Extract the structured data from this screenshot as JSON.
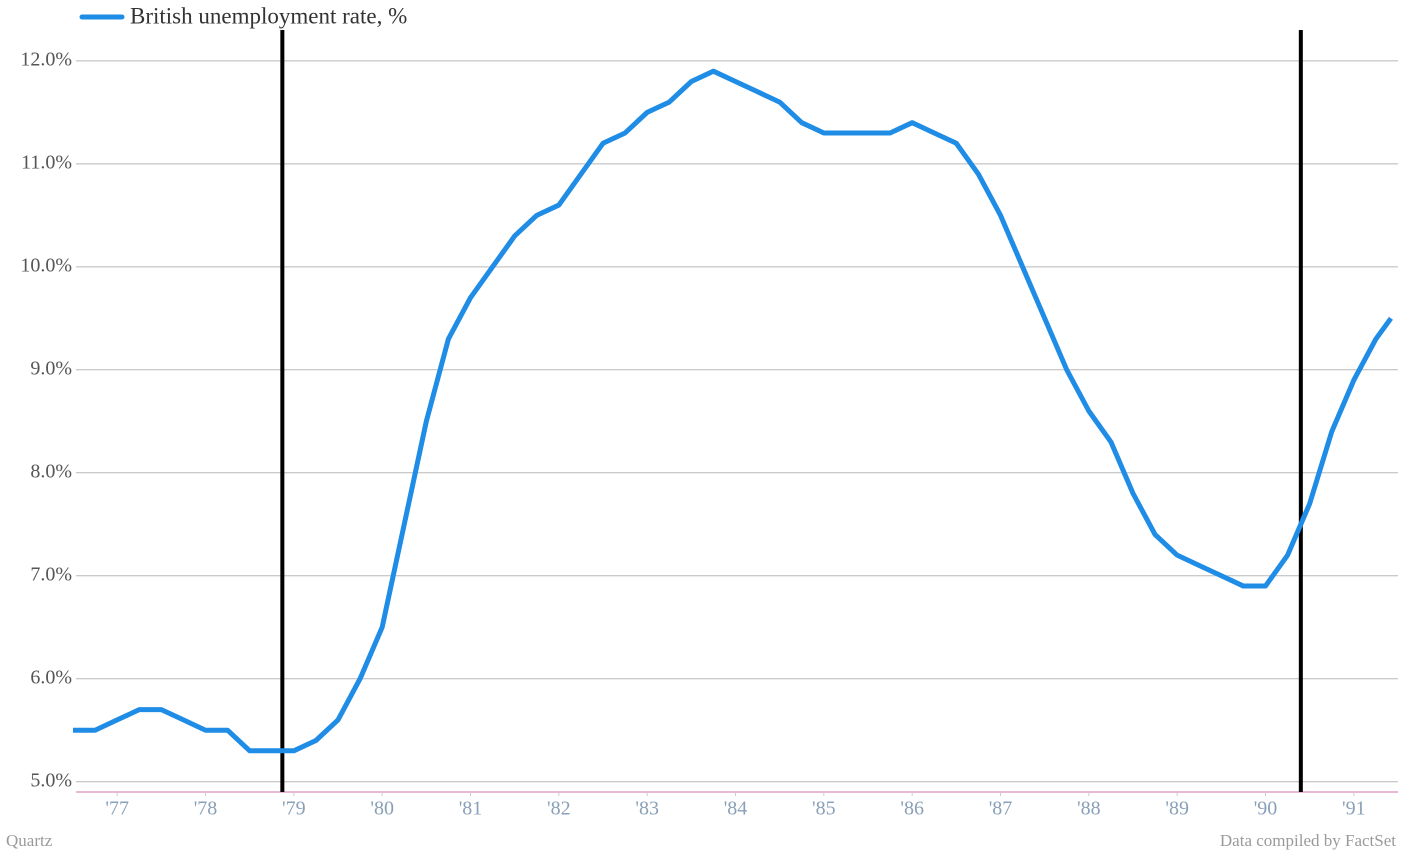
{
  "chart_data": {
    "type": "line",
    "x": [
      1977.0,
      1977.25,
      1977.5,
      1977.75,
      1978.0,
      1978.25,
      1978.5,
      1978.75,
      1979.0,
      1979.25,
      1979.5,
      1979.75,
      1980.0,
      1980.25,
      1980.5,
      1980.75,
      1981.0,
      1981.25,
      1981.5,
      1981.75,
      1982.0,
      1982.25,
      1982.5,
      1982.75,
      1983.0,
      1983.25,
      1983.5,
      1983.75,
      1984.0,
      1984.25,
      1984.5,
      1984.75,
      1985.0,
      1985.25,
      1985.5,
      1985.75,
      1986.0,
      1986.25,
      1986.5,
      1986.75,
      1987.0,
      1987.25,
      1987.5,
      1987.75,
      1988.0,
      1988.25,
      1988.5,
      1988.75,
      1989.0,
      1989.25,
      1989.5,
      1989.75,
      1990.0,
      1990.25,
      1990.5,
      1990.75,
      1991.0,
      1991.25,
      1991.5,
      1991.75,
      1991.92
    ],
    "series": [
      {
        "name": "British unemployment rate, %",
        "color": "#1f8ce6",
        "values": [
          5.5,
          5.5,
          5.6,
          5.7,
          5.7,
          5.6,
          5.5,
          5.5,
          5.3,
          5.3,
          5.3,
          5.4,
          5.6,
          6.0,
          6.5,
          7.5,
          8.5,
          9.3,
          9.7,
          10.0,
          10.3,
          10.5,
          10.6,
          10.9,
          11.2,
          11.3,
          11.5,
          11.6,
          11.8,
          11.9,
          11.8,
          11.7,
          11.6,
          11.4,
          11.3,
          11.3,
          11.3,
          11.3,
          11.4,
          11.3,
          11.2,
          10.9,
          10.5,
          10.0,
          9.5,
          9.0,
          8.6,
          8.3,
          7.8,
          7.4,
          7.2,
          7.1,
          7.0,
          6.9,
          6.9,
          7.2,
          7.7,
          8.4,
          8.9,
          9.3,
          9.5
        ]
      }
    ],
    "xlim": [
      1977,
      1992
    ],
    "xticks": [
      {
        "value": 1977.5,
        "label": "'77"
      },
      {
        "value": 1978.5,
        "label": "'78"
      },
      {
        "value": 1979.5,
        "label": "'79"
      },
      {
        "value": 1980.5,
        "label": "'80"
      },
      {
        "value": 1981.5,
        "label": "'81"
      },
      {
        "value": 1982.5,
        "label": "'82"
      },
      {
        "value": 1983.5,
        "label": "'83"
      },
      {
        "value": 1984.5,
        "label": "'84"
      },
      {
        "value": 1985.5,
        "label": "'85"
      },
      {
        "value": 1986.5,
        "label": "'86"
      },
      {
        "value": 1987.5,
        "label": "'87"
      },
      {
        "value": 1988.5,
        "label": "'88"
      },
      {
        "value": 1989.5,
        "label": "'89"
      },
      {
        "value": 1990.5,
        "label": "'90"
      },
      {
        "value": 1991.5,
        "label": "'91"
      }
    ],
    "ylim": [
      4.9,
      12.3
    ],
    "yticks": [
      {
        "value": 5,
        "label": "5.0%"
      },
      {
        "value": 6,
        "label": "6.0%"
      },
      {
        "value": 7,
        "label": "7.0%"
      },
      {
        "value": 8,
        "label": "8.0%"
      },
      {
        "value": 9,
        "label": "9.0%"
      },
      {
        "value": 10,
        "label": "10.0%"
      },
      {
        "value": 11,
        "label": "11.0%"
      },
      {
        "value": 12,
        "label": "12.0%"
      }
    ],
    "markers": [
      1979.37,
      1990.9
    ],
    "grid": true,
    "source_left": "Quartz",
    "source_right": "Data compiled by FactSet"
  }
}
